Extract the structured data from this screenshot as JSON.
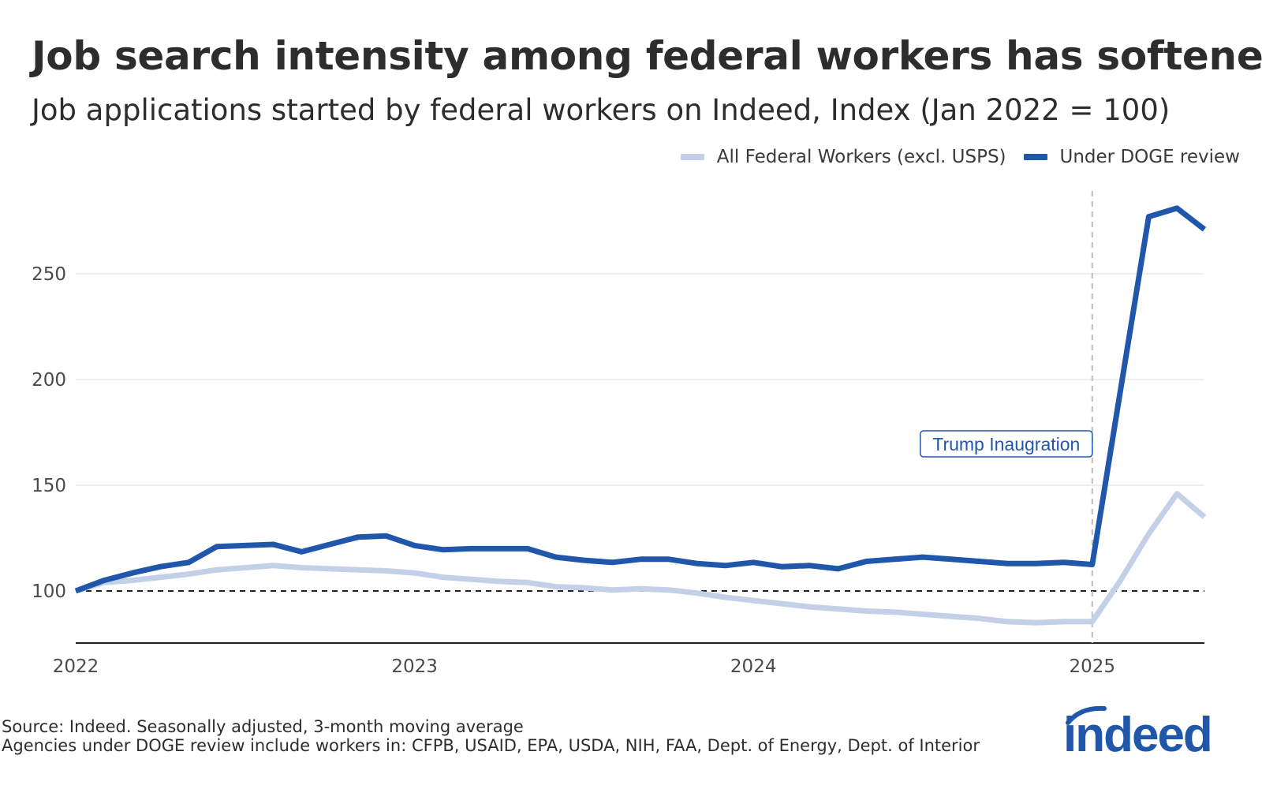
{
  "header": {
    "title": "Job search intensity among federal workers has softened",
    "subtitle": "Job applications started by federal workers on Indeed, Index (Jan 2022 = 100)"
  },
  "footer": {
    "source": "Source: Indeed. Seasonally adjusted, 3-month moving average",
    "note": "Agencies under DOGE review include workers in: CFPB, USAID, EPA, USDA, NIH, FAA, Dept. of Energy, Dept. of Interior"
  },
  "logo": {
    "text": "indeed"
  },
  "colors": {
    "all_federal": "#c3d0e8",
    "doge": "#2157ab",
    "grid": "#e4e4e4",
    "baseline": "#000000",
    "vline": "#bdbdbd",
    "annotation": "#2157ab",
    "logo": "#2157ab"
  },
  "chart_data": {
    "type": "line",
    "title": "Job search intensity among federal workers has softened",
    "subtitle": "Job applications started by federal workers on Indeed, Index (Jan 2022 = 100)",
    "xlabel": "",
    "ylabel": "",
    "x": [
      "2022-01",
      "2022-02",
      "2022-03",
      "2022-04",
      "2022-05",
      "2022-06",
      "2022-07",
      "2022-08",
      "2022-09",
      "2022-10",
      "2022-11",
      "2022-12",
      "2023-01",
      "2023-02",
      "2023-03",
      "2023-04",
      "2023-05",
      "2023-06",
      "2023-07",
      "2023-08",
      "2023-09",
      "2023-10",
      "2023-11",
      "2023-12",
      "2024-01",
      "2024-02",
      "2024-03",
      "2024-04",
      "2024-05",
      "2024-06",
      "2024-07",
      "2024-08",
      "2024-09",
      "2024-10",
      "2024-11",
      "2024-12",
      "2025-01",
      "2025-02",
      "2025-03",
      "2025-04",
      "2025-05"
    ],
    "x_ticks": [
      "2022",
      "2023",
      "2024",
      "2025"
    ],
    "y_ticks": [
      100,
      150,
      200,
      250
    ],
    "ylim": [
      75,
      288
    ],
    "grid": true,
    "legend_position": "top-right",
    "series": [
      {
        "name": "All Federal Workers (excl. USPS)",
        "color": "#c3d0e8",
        "values": [
          100,
          104,
          105,
          106.5,
          108,
          110,
          111,
          112,
          111,
          110.5,
          110,
          109.5,
          108.5,
          106.5,
          105.5,
          104.5,
          104,
          102,
          101.5,
          100.5,
          101,
          100.5,
          99,
          97,
          95.5,
          94,
          92.5,
          91.5,
          90.5,
          90,
          89,
          88,
          87,
          85.5,
          85,
          85.5,
          85.5,
          105,
          127,
          146,
          135
        ]
      },
      {
        "name": "Under DOGE review",
        "color": "#2157ab",
        "values": [
          100,
          105,
          108.5,
          111.5,
          113.5,
          121,
          121.5,
          122,
          118.5,
          122,
          125.5,
          126,
          121.5,
          119.5,
          120,
          120,
          120,
          116,
          114.5,
          113.5,
          115,
          115,
          113,
          112,
          113.5,
          111.5,
          112,
          110.5,
          114,
          115,
          116,
          115,
          114,
          113,
          113,
          113.5,
          112.5,
          195,
          277,
          281,
          271
        ]
      }
    ],
    "annotations": [
      {
        "text": "Trump Inaugration",
        "x": "2025-01",
        "style": "dashed-vertical-line"
      }
    ],
    "reference_lines": [
      {
        "y": 100,
        "style": "dashed"
      }
    ]
  }
}
